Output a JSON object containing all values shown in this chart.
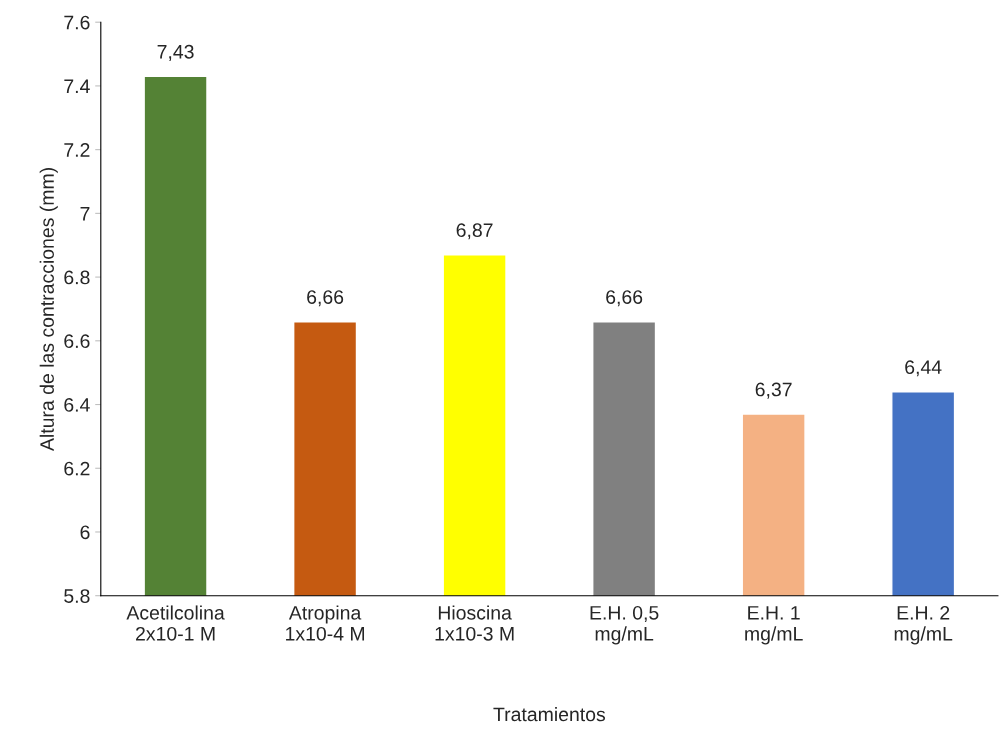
{
  "chart_data": {
    "type": "bar",
    "xlabel": "Tratamientos",
    "ylabel": "Altura de las contracciones (mm)",
    "categories": [
      "Acetilcolina\n2x10-1 M",
      "Atropina\n1x10-4 M",
      "Hioscina\n1x10-3 M",
      "E.H. 0,5\nmg/mL",
      "E.H. 1\nmg/mL",
      "E.H. 2\nmg/mL"
    ],
    "values": [
      7.43,
      6.66,
      6.87,
      6.66,
      6.37,
      6.44
    ],
    "value_labels": [
      "7,43",
      "6,66",
      "6,87",
      "6,66",
      "6,37",
      "6,44"
    ],
    "colors": [
      "#548235",
      "#c55a11",
      "#ffff00",
      "#808080",
      "#f4b183",
      "#4472c4"
    ],
    "ylim": [
      5.8,
      7.6
    ],
    "yticks": [
      5.8,
      6,
      6.2,
      6.4,
      6.6,
      6.8,
      7,
      7.2,
      7.4,
      7.6
    ],
    "grid": false,
    "legend": false
  }
}
